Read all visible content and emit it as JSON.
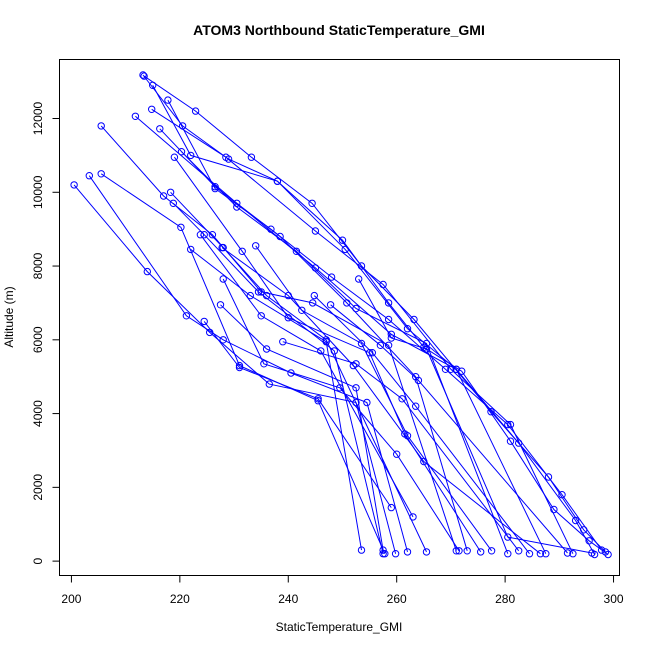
{
  "chart_data": {
    "type": "scatter",
    "title": "ATOM3 Northbound StaticTemperature_GMI",
    "xlabel": "StaticTemperature_GMI",
    "ylabel": "Altitude (m)",
    "xlim": [
      197.8,
      301.1
    ],
    "ylim": [
      -390,
      13600
    ],
    "x_ticks": [
      200,
      220,
      240,
      260,
      280,
      300
    ],
    "y_ticks": [
      0,
      2000,
      4000,
      6000,
      8000,
      10000,
      12000
    ],
    "color": "#0000ff",
    "grid": false,
    "marker": "open-circle",
    "series": [
      {
        "x": [
          213.2,
          220.5,
          229.0,
          238.0,
          250.0,
          258.5,
          265.0,
          272.0,
          281.0,
          289.0,
          295.5,
          299.0
        ],
        "y": [
          13180,
          11800,
          10900,
          10300,
          8700,
          7000,
          5800,
          5150,
          3250,
          1400,
          550,
          180
        ]
      },
      {
        "x": [
          213.4,
          222.9,
          233.2,
          244.4,
          253.5,
          263.2,
          277.4,
          288.0,
          294.5,
          298.5
        ],
        "y": [
          13150,
          12200,
          10950,
          9700,
          8000,
          6550,
          4050,
          2280,
          850,
          250
        ]
      },
      {
        "x": [
          215.0,
          222.0,
          238.0,
          250.5,
          262.0,
          271.0,
          282.5,
          293.0,
          296.5
        ],
        "y": [
          12900,
          11000,
          10300,
          8450,
          6300,
          5200,
          3200,
          1100,
          180
        ]
      },
      {
        "x": [
          217.8,
          226.5,
          236.8,
          248.0,
          258.5,
          269.0,
          280.5,
          290.5,
          297.8
        ],
        "y": [
          12500,
          10100,
          9000,
          7700,
          6550,
          5200,
          3700,
          1800,
          300
        ]
      },
      {
        "x": [
          214.8,
          228.5,
          245.0,
          257.5,
          270.0,
          281.0,
          292.5
        ],
        "y": [
          12250,
          10950,
          8950,
          7500,
          5200,
          3700,
          200
        ]
      },
      {
        "x": [
          211.8,
          230.5,
          245.0,
          259.0,
          271.0,
          287.5
        ],
        "y": [
          12060,
          9700,
          7950,
          6150,
          5200,
          200
        ]
      },
      {
        "x": [
          216.3,
          226.5,
          238.5,
          250.8,
          263.5,
          273.0
        ],
        "y": [
          11720,
          10150,
          8800,
          7000,
          5000,
          280
        ]
      },
      {
        "x": [
          220.3,
          230.5,
          241.5,
          252.5,
          265.5,
          280.5
        ],
        "y": [
          11100,
          9600,
          8400,
          6850,
          5900,
          200
        ]
      },
      {
        "x": [
          219.0,
          231.5,
          240.0,
          255.0,
          261.5,
          275.5
        ],
        "y": [
          10950,
          8400,
          6600,
          5650,
          3450,
          250
        ]
      },
      {
        "x": [
          205.5,
          217.0,
          226.0,
          235.0,
          244.5,
          258.5,
          271.0
        ],
        "y": [
          11800,
          9900,
          8850,
          7300,
          7000,
          5850,
          280
        ]
      },
      {
        "x": [
          218.3,
          228.0,
          236.0,
          247.0,
          265.5
        ],
        "y": [
          10000,
          8500,
          7200,
          6000,
          250
        ]
      },
      {
        "x": [
          218.8,
          224.5,
          234.5,
          248.5,
          257.5
        ],
        "y": [
          9700,
          8850,
          7300,
          5700,
          200
        ]
      },
      {
        "x": [
          200.5,
          214.0,
          225.5,
          236.5,
          252.5,
          259.8
        ],
        "y": [
          10200,
          7850,
          6200,
          4800,
          4300,
          200
        ]
      },
      {
        "x": [
          203.3,
          221.2,
          228.0,
          240.5,
          254.5,
          262.0
        ],
        "y": [
          10450,
          6650,
          6000,
          5100,
          4300,
          250
        ]
      },
      {
        "x": [
          205.5,
          220.2,
          231.0,
          245.5,
          257.8
        ],
        "y": [
          10500,
          9050,
          5300,
          4350,
          200
        ]
      },
      {
        "x": [
          223.8,
          235.0,
          246.0,
          263.0
        ],
        "y": [
          8850,
          6650,
          5700,
          1200
        ]
      },
      {
        "x": [
          227.8,
          240.0,
          252.0,
          265.0,
          286.5
        ],
        "y": [
          8500,
          7200,
          5300,
          2700,
          200
        ]
      },
      {
        "x": [
          234.0,
          242.5,
          253.5,
          262.0,
          277.5
        ],
        "y": [
          8550,
          6800,
          5900,
          3400,
          280
        ]
      },
      {
        "x": [
          228.0,
          235.5,
          249.5,
          260.0,
          271.5
        ],
        "y": [
          7650,
          5350,
          4700,
          2900,
          280
        ]
      },
      {
        "x": [
          224.5,
          231.0,
          245.5,
          259.0
        ],
        "y": [
          6500,
          5250,
          4400,
          1450
        ]
      },
      {
        "x": [
          222.0,
          233.0,
          247.0,
          253.5
        ],
        "y": [
          8450,
          7200,
          5950,
          300
        ]
      },
      {
        "x": [
          227.5,
          236.0,
          252.5,
          257.5
        ],
        "y": [
          6950,
          5750,
          4700,
          300
        ]
      },
      {
        "x": [
          239.0,
          252.5,
          261.0,
          282.5
        ],
        "y": [
          5950,
          5350,
          4400,
          280
        ]
      },
      {
        "x": [
          244.8,
          255.5,
          263.5,
          284.5
        ],
        "y": [
          7200,
          5650,
          4200,
          200
        ]
      },
      {
        "x": [
          247.8,
          257.0,
          264.0,
          291.5
        ],
        "y": [
          6950,
          5850,
          4900,
          220
        ]
      },
      {
        "x": [
          253.0,
          259.0,
          265.5,
          280.5,
          296.0
        ],
        "y": [
          7650,
          6050,
          5750,
          650,
          220
        ]
      }
    ]
  }
}
